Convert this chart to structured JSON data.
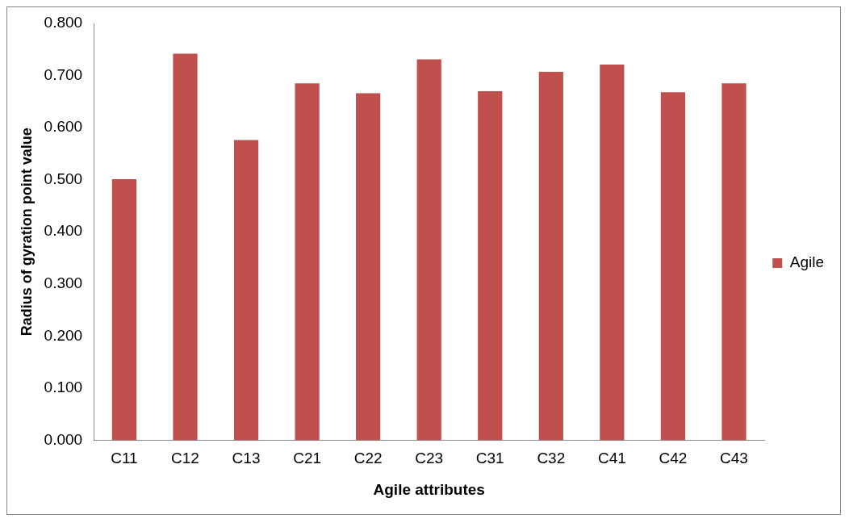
{
  "chart_data": {
    "type": "bar",
    "xlabel": "Agile attributes",
    "ylabel": "Radius of gyration point value",
    "categories": [
      "C11",
      "C12",
      "C13",
      "C21",
      "C22",
      "C23",
      "C31",
      "C32",
      "C41",
      "C42",
      "C43"
    ],
    "series": [
      {
        "name": "Agile",
        "color": "#c0504d",
        "values": [
          0.501,
          0.742,
          0.576,
          0.685,
          0.666,
          0.731,
          0.67,
          0.707,
          0.721,
          0.668,
          0.685
        ]
      }
    ],
    "ylim": [
      0,
      0.8
    ],
    "yticks": [
      {
        "value": 0,
        "label": "0.000"
      },
      {
        "value": 0.1,
        "label": "0.100"
      },
      {
        "value": 0.2,
        "label": "0.200"
      },
      {
        "value": 0.3,
        "label": "0.300"
      },
      {
        "value": 0.4,
        "label": "0.400"
      },
      {
        "value": 0.5,
        "label": "0.500"
      },
      {
        "value": 0.6,
        "label": "0.600"
      },
      {
        "value": 0.7,
        "label": "0.700"
      },
      {
        "value": 0.8,
        "label": "0.800"
      }
    ],
    "grid": false,
    "legend": "right"
  }
}
